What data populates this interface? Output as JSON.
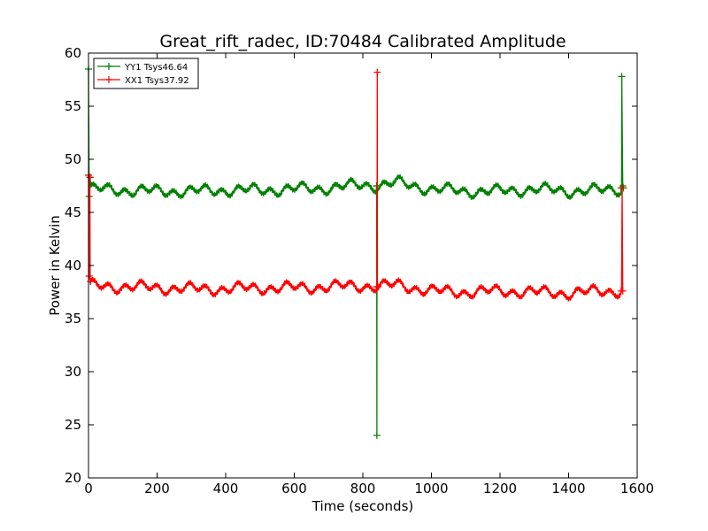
{
  "chart_data": {
    "type": "line",
    "title": "Great_rift_radec, ID:70484 Calibrated Amplitude",
    "xlabel": "Time (seconds)",
    "ylabel": "Power in Kelvin",
    "xlim": [
      0,
      1600
    ],
    "ylim": [
      20,
      60
    ],
    "x_ticks": [
      "0",
      "200",
      "400",
      "600",
      "800",
      "1000",
      "1200",
      "1400",
      "1600"
    ],
    "y_ticks": [
      "20",
      "25",
      "30",
      "35",
      "40",
      "45",
      "50",
      "55",
      "60"
    ],
    "grid": false,
    "legend_position": "top-left",
    "marker": "+",
    "series": [
      {
        "name": "YY1 Tsys46.64",
        "color": "#008000",
        "baseline": [
          [
            5,
            47.2
          ],
          [
            100,
            47.1
          ],
          [
            200,
            47.0
          ],
          [
            300,
            47.0
          ],
          [
            400,
            47.1
          ],
          [
            500,
            47.1
          ],
          [
            600,
            47.2
          ],
          [
            700,
            47.3
          ],
          [
            800,
            47.6
          ],
          [
            840,
            47.5
          ],
          [
            900,
            47.8
          ],
          [
            1000,
            47.2
          ],
          [
            1100,
            47.0
          ],
          [
            1200,
            47.0
          ],
          [
            1300,
            47.2
          ],
          [
            1400,
            47.0
          ],
          [
            1500,
            47.1
          ],
          [
            1555,
            47.2
          ]
        ],
        "ripple_amplitude": 0.6,
        "spikes": [
          [
            0,
            58.5
          ],
          [
            2,
            46.5
          ],
          [
            5,
            48.3
          ],
          [
            840,
            47.5
          ],
          [
            841,
            24.0
          ],
          [
            842,
            47.5
          ],
          [
            1553,
            47.3
          ],
          [
            1555,
            57.8
          ],
          [
            1558,
            47.5
          ],
          [
            1560,
            47.3
          ]
        ]
      },
      {
        "name": "XX1 Tsys37.92",
        "color": "#ff0000",
        "baseline": [
          [
            5,
            38.1
          ],
          [
            100,
            38.0
          ],
          [
            200,
            37.9
          ],
          [
            300,
            37.8
          ],
          [
            400,
            37.8
          ],
          [
            500,
            37.9
          ],
          [
            600,
            37.9
          ],
          [
            700,
            38.0
          ],
          [
            800,
            38.1
          ],
          [
            840,
            38.0
          ],
          [
            900,
            38.2
          ],
          [
            1000,
            37.6
          ],
          [
            1100,
            37.5
          ],
          [
            1200,
            37.6
          ],
          [
            1300,
            37.5
          ],
          [
            1400,
            37.4
          ],
          [
            1500,
            37.6
          ],
          [
            1555,
            37.6
          ]
        ],
        "ripple_amplitude": 0.6,
        "spikes": [
          [
            0,
            48.5
          ],
          [
            2,
            39.0
          ],
          [
            4,
            48.3
          ],
          [
            6,
            38.5
          ],
          [
            840,
            38.0
          ],
          [
            842,
            58.2
          ],
          [
            844,
            38.0
          ],
          [
            1553,
            37.6
          ],
          [
            1556,
            47.3
          ],
          [
            1558,
            37.6
          ]
        ]
      }
    ]
  }
}
